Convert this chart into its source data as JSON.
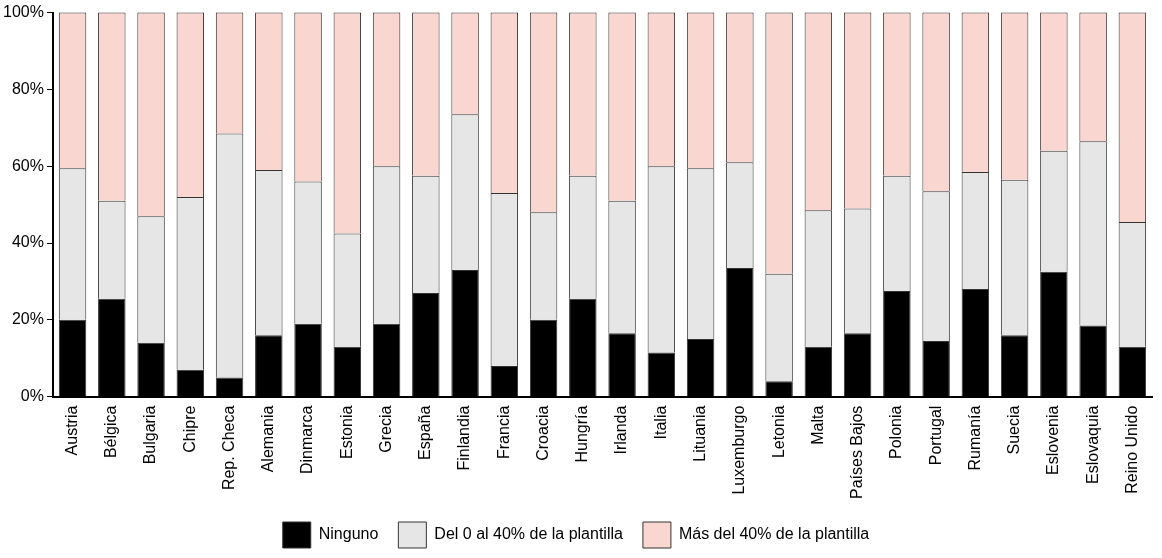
{
  "chart_data": {
    "type": "bar",
    "stacked": true,
    "categories": [
      "Austria",
      "Bélgica",
      "Bulgaria",
      "Chipre",
      "Rep. Checa",
      "Alemania",
      "Dinmarca",
      "Estonia",
      "Grecia",
      "España",
      "Finlandia",
      "Francia",
      "Croacia",
      "Hungría",
      "Irlanda",
      "Italia",
      "Lituania",
      "Luxemburgo",
      "Letonia",
      "Malta",
      "Países Bajos",
      "Polonia",
      "Portugal",
      "Rumanía",
      "Suecia",
      "Eslovenia",
      "Eslovaquia",
      "Reino Unido"
    ],
    "series": [
      {
        "name": "Ninguno",
        "color": "#000000",
        "values": [
          20,
          25.5,
          14,
          7,
          5,
          16,
          19,
          13,
          19,
          27,
          33,
          8,
          20,
          25.5,
          16.5,
          11.5,
          15,
          33.5,
          4,
          13,
          16.5,
          27.5,
          14.5,
          28,
          16,
          32.5,
          18.5,
          13
        ]
      },
      {
        "name": "Del 0 al 40% de la plantilla",
        "color": "#e6e6e6",
        "values": [
          39.5,
          25.5,
          33,
          45,
          63.5,
          43,
          37,
          29.5,
          41,
          30.5,
          40.5,
          45,
          28,
          32,
          34.5,
          48.5,
          44.5,
          27.5,
          28,
          35.5,
          32.5,
          30,
          39,
          30.5,
          40.5,
          31.5,
          48,
          32.5
        ]
      },
      {
        "name": "Más del 40% de la plantilla",
        "color": "#f9d6cf",
        "values": [
          40.5,
          49,
          53,
          48,
          31.5,
          41,
          44,
          57.5,
          40,
          42.5,
          26.5,
          47,
          52,
          42.5,
          49,
          40,
          40.5,
          39,
          68,
          51.5,
          51,
          42.5,
          46.5,
          41.5,
          43.5,
          36,
          33.5,
          54.5
        ]
      }
    ],
    "ylim": [
      0,
      100
    ],
    "yticks": [
      {
        "value": 0,
        "label": "0%"
      },
      {
        "value": 20,
        "label": "20%"
      },
      {
        "value": 40,
        "label": "40%"
      },
      {
        "value": 60,
        "label": "60%"
      },
      {
        "value": 80,
        "label": "80%"
      },
      {
        "value": 100,
        "label": "100%"
      }
    ],
    "grid": false,
    "legend": "bottom"
  }
}
